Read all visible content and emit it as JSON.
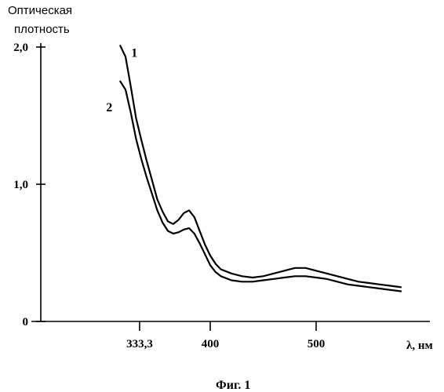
{
  "chart_data": {
    "type": "line",
    "ylabel_line1": "Оптическая",
    "ylabel_line2": "плотность",
    "xlabel": "λ, нм",
    "caption": "Фиг. 1",
    "x_ticks": [
      {
        "value": 333.3,
        "label": "333,3"
      },
      {
        "value": 400,
        "label": "400"
      },
      {
        "value": 500,
        "label": "500"
      }
    ],
    "y_ticks": [
      {
        "value": 0,
        "label": "0"
      },
      {
        "value": 1.0,
        "label": "1,0"
      },
      {
        "value": 2.0,
        "label": "2,0"
      }
    ],
    "xlim": [
      290,
      600
    ],
    "ylim": [
      0,
      2.0
    ],
    "series": [
      {
        "name": "1",
        "x": [
          315,
          320,
          325,
          330,
          335,
          340,
          345,
          350,
          355,
          360,
          365,
          370,
          375,
          380,
          385,
          390,
          395,
          400,
          405,
          410,
          420,
          430,
          440,
          450,
          460,
          470,
          480,
          490,
          500,
          510,
          520,
          530,
          540,
          550,
          560,
          570,
          580
        ],
        "y": [
          2.01,
          1.93,
          1.71,
          1.48,
          1.32,
          1.17,
          1.03,
          0.89,
          0.8,
          0.73,
          0.71,
          0.74,
          0.79,
          0.81,
          0.76,
          0.66,
          0.56,
          0.48,
          0.42,
          0.38,
          0.35,
          0.33,
          0.32,
          0.33,
          0.35,
          0.37,
          0.39,
          0.39,
          0.37,
          0.35,
          0.33,
          0.31,
          0.29,
          0.28,
          0.27,
          0.26,
          0.25
        ]
      },
      {
        "name": "2",
        "x": [
          315,
          320,
          325,
          330,
          335,
          340,
          345,
          350,
          355,
          360,
          365,
          370,
          375,
          380,
          385,
          390,
          395,
          400,
          405,
          410,
          420,
          430,
          440,
          450,
          460,
          470,
          480,
          490,
          500,
          510,
          520,
          530,
          540,
          550,
          560,
          570,
          580
        ],
        "y": [
          1.75,
          1.69,
          1.52,
          1.33,
          1.18,
          1.05,
          0.93,
          0.81,
          0.72,
          0.66,
          0.64,
          0.65,
          0.67,
          0.68,
          0.64,
          0.57,
          0.49,
          0.41,
          0.36,
          0.33,
          0.3,
          0.29,
          0.29,
          0.3,
          0.31,
          0.32,
          0.33,
          0.33,
          0.32,
          0.31,
          0.29,
          0.27,
          0.26,
          0.25,
          0.24,
          0.23,
          0.22
        ]
      }
    ]
  }
}
